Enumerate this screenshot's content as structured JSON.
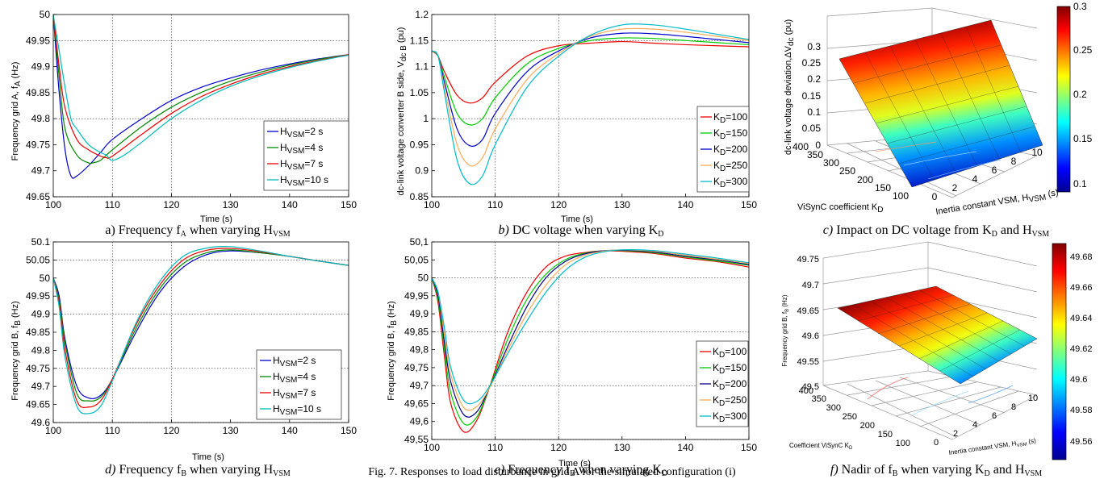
{
  "bottom_caption": "Fig. 7. Responses to load disturbance in grid A for the simulated configuration (i)",
  "chart_data": [
    {
      "type": "line",
      "caption_prefix": "a)",
      "caption": "Frequency f",
      "caption_sub": "A",
      "caption_tail": " when varying H",
      "caption_tail_sub": "VSM",
      "xlabel": "Time (s)",
      "ylabel": "Frequency grid A, f",
      "ylabel_sub": "A",
      "ylabel_tail": " (Hz)",
      "xlim": [
        100,
        150
      ],
      "ylim": [
        49.65,
        50
      ],
      "xticks": [
        100,
        110,
        120,
        130,
        140,
        150
      ],
      "yticks": [
        "49.65",
        "49.7",
        "49.75",
        "49.8",
        "49.85",
        "49.9",
        "49.95",
        "50"
      ],
      "legend_position": "bottom-right",
      "series": [
        {
          "name": "H",
          "name_sub": "VSM",
          "name_tail": "=2 s",
          "color": "#0000cc",
          "x": [
            100,
            101,
            102,
            103,
            104,
            106,
            108,
            110,
            115,
            120,
            125,
            130,
            135,
            140,
            145,
            150
          ],
          "y": [
            50,
            49.85,
            49.74,
            49.69,
            49.69,
            49.71,
            49.735,
            49.76,
            49.8,
            49.835,
            49.86,
            49.878,
            49.893,
            49.905,
            49.915,
            49.923
          ]
        },
        {
          "name": "H",
          "name_sub": "VSM",
          "name_tail": "=4 s",
          "color": "#008800",
          "x": [
            100,
            101,
            102,
            104,
            106,
            107,
            108,
            110,
            115,
            120,
            125,
            130,
            135,
            140,
            145,
            150
          ],
          "y": [
            50,
            49.88,
            49.78,
            49.73,
            49.715,
            49.716,
            49.72,
            49.74,
            49.785,
            49.822,
            49.85,
            49.872,
            49.889,
            49.903,
            49.914,
            49.923
          ]
        },
        {
          "name": "H",
          "name_sub": "VSM",
          "name_tail": "=7 s",
          "color": "#ee0000",
          "x": [
            100,
            101,
            102,
            104,
            106,
            108,
            109,
            110,
            115,
            120,
            125,
            130,
            135,
            140,
            145,
            150
          ],
          "y": [
            50,
            49.9,
            49.82,
            49.76,
            49.74,
            49.728,
            49.725,
            49.728,
            49.77,
            49.81,
            49.842,
            49.866,
            49.885,
            49.9,
            49.912,
            49.923
          ]
        },
        {
          "name": "H",
          "name_sub": "VSM",
          "name_tail": "=10 s",
          "color": "#00bbbb",
          "x": [
            100,
            101,
            102,
            103,
            104,
            106,
            108,
            109,
            110,
            112,
            115,
            120,
            125,
            130,
            135,
            140,
            145,
            150
          ],
          "y": [
            50,
            49.93,
            49.86,
            49.8,
            49.78,
            49.75,
            49.735,
            49.73,
            49.72,
            49.73,
            49.755,
            49.8,
            49.835,
            49.862,
            49.882,
            49.898,
            49.911,
            49.922
          ]
        }
      ]
    },
    {
      "type": "line",
      "caption_prefix": "b)",
      "caption": "DC voltage when varying K",
      "caption_sub": "D",
      "caption_tail": "",
      "caption_tail_sub": "",
      "xlabel": "Time (s)",
      "ylabel": "dc-link voltage converter B side, V",
      "ylabel_sub": "dc B",
      "ylabel_tail": " (pu)",
      "xlim": [
        100,
        150
      ],
      "ylim": [
        0.85,
        1.2
      ],
      "xticks": [
        100,
        110,
        120,
        130,
        140,
        150
      ],
      "yticks": [
        "0.85",
        "0.9",
        "0.95",
        "1",
        "1.05",
        "1.1",
        "1.15",
        "1.2"
      ],
      "legend_position": "bottom-right",
      "series": [
        {
          "name": "K",
          "name_sub": "D",
          "name_tail": "=100",
          "color": "#ee0000",
          "x": [
            100,
            101,
            102,
            104,
            106,
            108,
            110,
            115,
            120,
            125,
            130,
            135,
            140,
            145,
            150
          ],
          "y": [
            1.13,
            1.12,
            1.09,
            1.045,
            1.03,
            1.04,
            1.07,
            1.12,
            1.14,
            1.145,
            1.148,
            1.145,
            1.142,
            1.14,
            1.138
          ]
        },
        {
          "name": "K",
          "name_sub": "D",
          "name_tail": "=150",
          "color": "#00cc00",
          "x": [
            100,
            101,
            102,
            104,
            106,
            108,
            110,
            115,
            120,
            125,
            130,
            135,
            140,
            145,
            150
          ],
          "y": [
            1.13,
            1.12,
            1.08,
            1.01,
            0.988,
            1.0,
            1.04,
            1.105,
            1.135,
            1.15,
            1.155,
            1.154,
            1.15,
            1.146,
            1.142
          ]
        },
        {
          "name": "K",
          "name_sub": "D",
          "name_tail": "=200",
          "color": "#0000cc",
          "x": [
            100,
            101,
            102,
            104,
            106,
            108,
            110,
            115,
            120,
            125,
            130,
            135,
            140,
            145,
            150
          ],
          "y": [
            1.13,
            1.12,
            1.07,
            0.98,
            0.948,
            0.96,
            1.01,
            1.09,
            1.13,
            1.155,
            1.164,
            1.163,
            1.158,
            1.152,
            1.146
          ]
        },
        {
          "name": "K",
          "name_sub": "D",
          "name_tail": "=250",
          "color": "#ffaa55",
          "x": [
            100,
            101,
            102,
            104,
            106,
            108,
            110,
            115,
            120,
            125,
            130,
            135,
            140,
            145,
            150
          ],
          "y": [
            1.13,
            1.12,
            1.06,
            0.95,
            0.91,
            0.925,
            0.98,
            1.075,
            1.125,
            1.158,
            1.172,
            1.172,
            1.166,
            1.158,
            1.15
          ]
        },
        {
          "name": "K",
          "name_sub": "D",
          "name_tail": "=300",
          "color": "#00bbcc",
          "x": [
            100,
            101,
            102,
            104,
            106,
            108,
            110,
            115,
            120,
            125,
            130,
            135,
            140,
            145,
            150
          ],
          "y": [
            1.13,
            1.12,
            1.05,
            0.92,
            0.875,
            0.89,
            0.95,
            1.06,
            1.12,
            1.16,
            1.18,
            1.18,
            1.172,
            1.162,
            1.152
          ]
        }
      ]
    },
    {
      "type": "surface",
      "caption_prefix": "c)",
      "caption": "Impact on DC voltage from K",
      "caption_sub": "D",
      "caption_tail": " and H",
      "caption_tail_sub": "VSM",
      "xlabel": "Inertia constant VSM, H",
      "xlabel_sub": "VSM",
      "xlabel_tail": " (s)",
      "ylabel": "ViSynC coefficient K",
      "ylabel_sub": "D",
      "zlabel": "dc-link voltage deviation,ΔV",
      "zlabel_sub": "dc",
      "zlabel_tail": " (pu)",
      "xticks": [
        "0",
        "2",
        "4",
        "6",
        "8",
        "10"
      ],
      "yticks": [
        "100",
        "150",
        "200",
        "250",
        "300",
        "350",
        "400"
      ],
      "zticks": [
        "0",
        "0.05",
        "0.1",
        "0.15",
        "0.2",
        "0.25",
        "0.3"
      ],
      "colorbar": [
        "0.1",
        "0.15",
        "0.2",
        "0.25",
        "0.3"
      ],
      "colormap": "jet"
    },
    {
      "type": "line",
      "caption_prefix": "d)",
      "caption": "Frequency f",
      "caption_sub": "B",
      "caption_tail": " when varying H",
      "caption_tail_sub": "VSM",
      "xlabel": "Time (s)",
      "ylabel": "Frequency grid B, f",
      "ylabel_sub": "B",
      "ylabel_tail": " (Hz)",
      "xlim": [
        100,
        150
      ],
      "ylim": [
        49.6,
        50.1
      ],
      "xticks": [
        100,
        110,
        120,
        130,
        140,
        150
      ],
      "yticks": [
        "49.6",
        "49.65",
        "49.7",
        "49.75",
        "49.8",
        "49.85",
        "49.9",
        "49.95",
        "50",
        "50.05",
        "50.1"
      ],
      "legend_position": "bottom-right",
      "series": [
        {
          "name": "H",
          "name_sub": "VSM",
          "name_tail": "=2 s",
          "color": "#0000cc",
          "x": [
            100,
            101,
            102,
            104,
            106,
            108,
            110,
            114,
            118,
            122,
            126,
            130,
            135,
            140,
            145,
            150
          ],
          "y": [
            50,
            49.95,
            49.83,
            49.7,
            49.668,
            49.675,
            49.72,
            49.85,
            49.96,
            50.03,
            50.065,
            50.075,
            50.07,
            50.06,
            50.047,
            50.035
          ]
        },
        {
          "name": "H",
          "name_sub": "VSM",
          "name_tail": "=4 s",
          "color": "#008800",
          "x": [
            100,
            101,
            102,
            104,
            106,
            108,
            110,
            114,
            118,
            122,
            126,
            130,
            135,
            140,
            145,
            150
          ],
          "y": [
            50,
            49.94,
            49.82,
            49.68,
            49.66,
            49.67,
            49.72,
            49.86,
            49.97,
            50.04,
            50.07,
            50.078,
            50.07,
            50.06,
            50.047,
            50.035
          ]
        },
        {
          "name": "H",
          "name_sub": "VSM",
          "name_tail": "=7 s",
          "color": "#ee0000",
          "x": [
            100,
            101,
            102,
            104,
            106,
            108,
            110,
            114,
            118,
            122,
            126,
            130,
            135,
            140,
            145,
            150
          ],
          "y": [
            50,
            49.93,
            49.8,
            49.66,
            49.643,
            49.66,
            49.72,
            49.87,
            49.98,
            50.05,
            50.077,
            50.082,
            50.073,
            50.06,
            50.047,
            50.035
          ]
        },
        {
          "name": "H",
          "name_sub": "VSM",
          "name_tail": "=10 s",
          "color": "#00bbbb",
          "x": [
            100,
            101,
            102,
            104,
            106,
            108,
            110,
            114,
            118,
            122,
            126,
            130,
            135,
            140,
            145,
            150
          ],
          "y": [
            50,
            49.92,
            49.78,
            49.645,
            49.625,
            49.645,
            49.715,
            49.875,
            49.99,
            50.06,
            50.083,
            50.087,
            50.075,
            50.06,
            50.047,
            50.035
          ]
        }
      ]
    },
    {
      "type": "line",
      "caption_prefix": "e)",
      "caption": "Frequency f",
      "caption_sub": "B",
      "caption_tail": " when varying K",
      "caption_tail_sub": "D",
      "xlabel": "Time (s)",
      "ylabel": "Frequency grid B, f",
      "ylabel_sub": "B",
      "ylabel_tail": " (Hz)",
      "xlim": [
        100,
        150
      ],
      "ylim": [
        49.55,
        50.1
      ],
      "xticks": [
        100,
        110,
        120,
        130,
        140,
        150
      ],
      "yticks": [
        "49,55",
        "49,6",
        "49,65",
        "49,7",
        "49,75",
        "49,8",
        "49,85",
        "49,9",
        "49,95",
        "50",
        "50,05",
        "50,1"
      ],
      "legend_position": "bottom-right",
      "series": [
        {
          "name": "K",
          "name_sub": "D",
          "name_tail": "=100",
          "color": "#ee0000",
          "x": [
            100,
            101,
            102,
            103,
            105,
            107,
            109,
            112,
            115,
            118,
            121,
            124,
            127,
            130,
            135,
            140,
            145,
            150
          ],
          "y": [
            50,
            49.93,
            49.78,
            49.65,
            49.572,
            49.6,
            49.69,
            49.85,
            49.96,
            50.03,
            50.06,
            50.07,
            50.075,
            50.074,
            50.068,
            50.055,
            50.045,
            50.03
          ]
        },
        {
          "name": "K",
          "name_sub": "D",
          "name_tail": "=150",
          "color": "#00cc00",
          "x": [
            100,
            101,
            102,
            103,
            105,
            107,
            109,
            112,
            115,
            118,
            121,
            124,
            127,
            130,
            135,
            140,
            145,
            150
          ],
          "y": [
            50,
            49.94,
            49.8,
            49.68,
            49.595,
            49.61,
            49.69,
            49.83,
            49.94,
            50.01,
            50.05,
            50.068,
            50.075,
            50.076,
            50.07,
            50.058,
            50.047,
            50.035
          ]
        },
        {
          "name": "K",
          "name_sub": "D",
          "name_tail": "=200",
          "color": "#000088",
          "x": [
            100,
            101,
            102,
            103,
            105,
            107,
            109,
            112,
            115,
            118,
            121,
            124,
            127,
            130,
            135,
            140,
            145,
            150
          ],
          "y": [
            50,
            49.95,
            49.82,
            49.71,
            49.62,
            49.625,
            49.69,
            49.81,
            49.92,
            50.0,
            50.045,
            50.066,
            50.075,
            50.077,
            50.072,
            50.06,
            50.05,
            50.037
          ]
        },
        {
          "name": "K",
          "name_sub": "D",
          "name_tail": "=250",
          "color": "#ffaa55",
          "x": [
            100,
            101,
            102,
            103,
            105,
            107,
            109,
            112,
            115,
            118,
            121,
            124,
            127,
            130,
            135,
            140,
            145,
            150
          ],
          "y": [
            50,
            49.96,
            49.84,
            49.73,
            49.64,
            49.64,
            49.69,
            49.8,
            49.9,
            49.98,
            50.035,
            50.062,
            50.074,
            50.078,
            50.074,
            50.063,
            50.052,
            50.04
          ]
        },
        {
          "name": "K",
          "name_sub": "D",
          "name_tail": "=300",
          "color": "#00bbcc",
          "x": [
            100,
            101,
            102,
            103,
            105,
            107,
            109,
            112,
            115,
            118,
            121,
            124,
            127,
            130,
            135,
            140,
            145,
            150
          ],
          "y": [
            50,
            49.96,
            49.86,
            49.75,
            49.66,
            49.655,
            49.695,
            49.79,
            49.88,
            49.96,
            50.02,
            50.056,
            50.072,
            50.078,
            50.076,
            50.066,
            50.055,
            50.042
          ]
        }
      ]
    },
    {
      "type": "surface",
      "caption_prefix": "f)",
      "caption": "Nadir of f",
      "caption_sub": "B",
      "caption_tail": " when varying K",
      "caption_tail_sub": "D",
      "caption_tail2": " and H",
      "caption_tail2_sub": "VSM",
      "xlabel": "Inertia constant VSM, H",
      "xlabel_sub": "VSM",
      "xlabel_tail": " (s)",
      "ylabel": "Coefficient ViSynC K",
      "ylabel_sub": "D",
      "zlabel": "Frequency grid B, f",
      "zlabel_sub": "B",
      "zlabel_tail": " (Hz)",
      "xticks": [
        "0",
        "2",
        "4",
        "6",
        "8",
        "10"
      ],
      "yticks": [
        "100",
        "150",
        "200",
        "250",
        "300",
        "350",
        "400"
      ],
      "zticks": [
        "49.5",
        "49.55",
        "49.6",
        "49.65",
        "49.7",
        "49.75"
      ],
      "colorbar": [
        "49.56",
        "49.58",
        "49.6",
        "49.62",
        "49.64",
        "49.66",
        "49.68"
      ],
      "colormap": "jet"
    }
  ]
}
